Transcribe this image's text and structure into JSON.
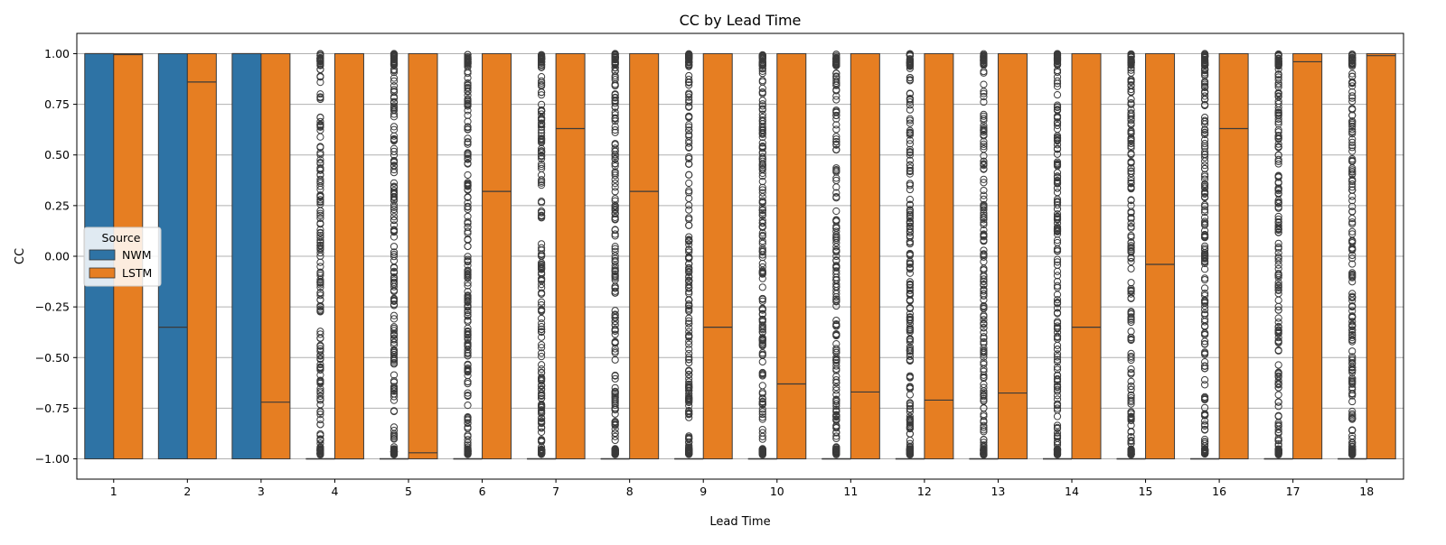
{
  "chart_data": {
    "type": "boxplot",
    "title": "CC by Lead Time",
    "xlabel": "Lead Time",
    "ylabel": "CC",
    "ylim": [
      -1.1,
      1.1
    ],
    "yticks": [
      -1.0,
      -0.75,
      -0.5,
      -0.25,
      0.0,
      0.25,
      0.5,
      0.75,
      1.0
    ],
    "ytick_labels": [
      "−1.00",
      "−0.75",
      "−0.50",
      "−0.25",
      "0.00",
      "0.25",
      "0.50",
      "0.75",
      "1.00"
    ],
    "grid": "horizontal",
    "categories": [
      "1",
      "2",
      "3",
      "4",
      "5",
      "6",
      "7",
      "8",
      "9",
      "10",
      "11",
      "12",
      "13",
      "14",
      "15",
      "16",
      "17",
      "18"
    ],
    "legend": {
      "title": "Source",
      "placement": "center-left"
    },
    "series": [
      {
        "name": "NWM",
        "color": "#2e73a5",
        "box": [
          {
            "q1": -1.0,
            "median": 1.0,
            "q3": 1.0,
            "outliers": false
          },
          {
            "q1": -1.0,
            "median": -0.35,
            "q3": 1.0,
            "outliers": false
          },
          {
            "q1": -1.0,
            "median": 1.0,
            "q3": 1.0,
            "outliers": false
          },
          {
            "q1": -1.0,
            "median": -1.0,
            "q3": -1.0,
            "outliers": true
          },
          {
            "q1": -1.0,
            "median": -1.0,
            "q3": -1.0,
            "outliers": true
          },
          {
            "q1": -1.0,
            "median": -1.0,
            "q3": -1.0,
            "outliers": true
          },
          {
            "q1": -1.0,
            "median": -1.0,
            "q3": -1.0,
            "outliers": true
          },
          {
            "q1": -1.0,
            "median": -1.0,
            "q3": -1.0,
            "outliers": true
          },
          {
            "q1": -1.0,
            "median": -1.0,
            "q3": -1.0,
            "outliers": true
          },
          {
            "q1": -1.0,
            "median": -1.0,
            "q3": -1.0,
            "outliers": true
          },
          {
            "q1": -1.0,
            "median": -1.0,
            "q3": -1.0,
            "outliers": true
          },
          {
            "q1": -1.0,
            "median": -1.0,
            "q3": -1.0,
            "outliers": true
          },
          {
            "q1": -1.0,
            "median": -1.0,
            "q3": -1.0,
            "outliers": true
          },
          {
            "q1": -1.0,
            "median": -1.0,
            "q3": -1.0,
            "outliers": true
          },
          {
            "q1": -1.0,
            "median": -1.0,
            "q3": -1.0,
            "outliers": true
          },
          {
            "q1": -1.0,
            "median": -1.0,
            "q3": -1.0,
            "outliers": true
          },
          {
            "q1": -1.0,
            "median": -1.0,
            "q3": -1.0,
            "outliers": true
          },
          {
            "q1": -1.0,
            "median": -1.0,
            "q3": -1.0,
            "outliers": true
          }
        ]
      },
      {
        "name": "LSTM",
        "color": "#e67e22",
        "box": [
          {
            "q1": -1.0,
            "median": 0.995,
            "q3": 1.0,
            "outliers": false
          },
          {
            "q1": -1.0,
            "median": 0.86,
            "q3": 1.0,
            "outliers": false
          },
          {
            "q1": -1.0,
            "median": -0.72,
            "q3": 1.0,
            "outliers": false
          },
          {
            "q1": -1.0,
            "median": -1.0,
            "q3": 1.0,
            "outliers": false
          },
          {
            "q1": -1.0,
            "median": -0.97,
            "q3": 1.0,
            "outliers": false
          },
          {
            "q1": -1.0,
            "median": 0.32,
            "q3": 1.0,
            "outliers": false
          },
          {
            "q1": -1.0,
            "median": 0.63,
            "q3": 1.0,
            "outliers": false
          },
          {
            "q1": -1.0,
            "median": 0.32,
            "q3": 1.0,
            "outliers": false
          },
          {
            "q1": -1.0,
            "median": -0.35,
            "q3": 1.0,
            "outliers": false
          },
          {
            "q1": -1.0,
            "median": -0.63,
            "q3": 1.0,
            "outliers": false
          },
          {
            "q1": -1.0,
            "median": -0.67,
            "q3": 1.0,
            "outliers": false
          },
          {
            "q1": -1.0,
            "median": -0.71,
            "q3": 1.0,
            "outliers": false
          },
          {
            "q1": -1.0,
            "median": -0.675,
            "q3": 1.0,
            "outliers": false
          },
          {
            "q1": -1.0,
            "median": -0.35,
            "q3": 1.0,
            "outliers": false
          },
          {
            "q1": -1.0,
            "median": -0.04,
            "q3": 1.0,
            "outliers": false
          },
          {
            "q1": -1.0,
            "median": 0.63,
            "q3": 1.0,
            "outliers": false
          },
          {
            "q1": -1.0,
            "median": 0.96,
            "q3": 1.0,
            "outliers": false
          },
          {
            "q1": -1.0,
            "median": 0.99,
            "q3": 1.0,
            "outliers": false
          }
        ]
      }
    ]
  }
}
